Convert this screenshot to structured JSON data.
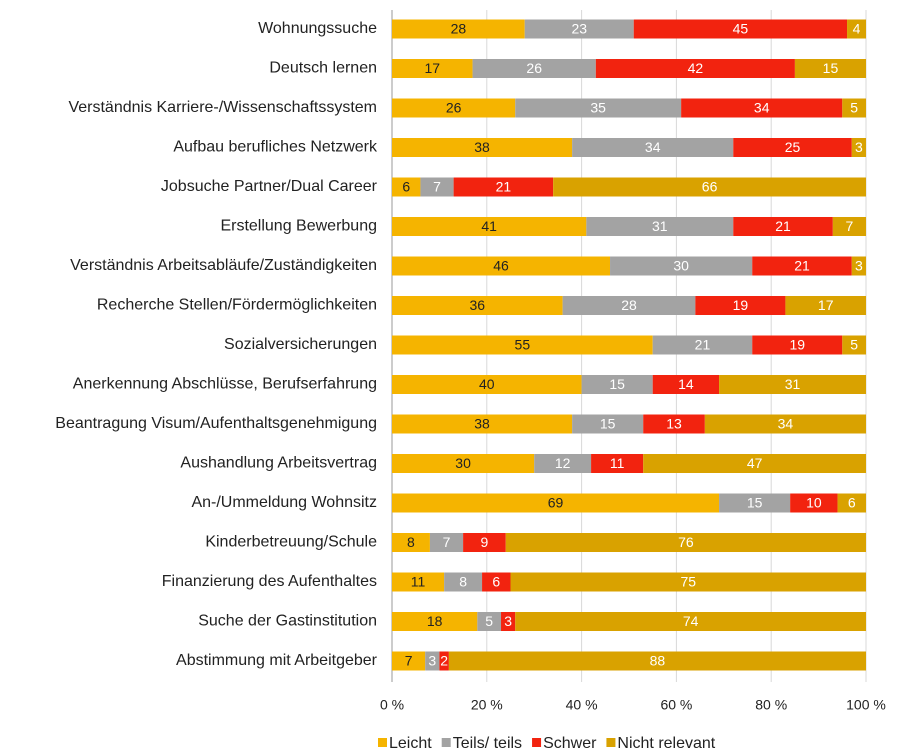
{
  "chart_data": {
    "type": "stacked-bar-horizontal",
    "categories": [
      "Wohnungssuche",
      "Deutsch lernen",
      "Verständnis Karriere-/Wissenschaftssystem",
      "Aufbau berufliches Netzwerk",
      "Jobsuche Partner/Dual Career",
      "Erstellung Bewerbung",
      "Verständnis Arbeitsabläufe/Zuständigkeiten",
      "Recherche Stellen/Fördermöglichkeiten",
      "Sozialversicherungen",
      "Anerkennung Abschlüsse, Berufserfahrung",
      "Beantragung Visum/Aufenthaltsgenehmigung",
      "Aushandlung Arbeitsvertrag",
      "An-/Ummeldung Wohnsitz",
      "Kinderbetreuung/Schule",
      "Finanzierung des Aufenthaltes",
      "Suche der Gastinstitution",
      "Abstimmung mit Arbeitgeber"
    ],
    "series": [
      {
        "name": "Leicht",
        "color": "#f5b400",
        "values": [
          28,
          17,
          26,
          38,
          6,
          41,
          46,
          36,
          55,
          40,
          38,
          30,
          69,
          8,
          11,
          18,
          7
        ]
      },
      {
        "name": "Teils/ teils",
        "color": "#a3a3a3",
        "values": [
          23,
          26,
          35,
          34,
          7,
          31,
          30,
          28,
          21,
          15,
          15,
          12,
          15,
          7,
          8,
          5,
          3
        ]
      },
      {
        "name": "Schwer",
        "color": "#f2230f",
        "values": [
          45,
          42,
          34,
          25,
          21,
          21,
          21,
          19,
          19,
          14,
          13,
          11,
          10,
          9,
          6,
          3,
          2
        ]
      },
      {
        "name": "Nicht relevant",
        "color": "#d9a200",
        "values": [
          4,
          15,
          5,
          3,
          66,
          7,
          3,
          17,
          5,
          31,
          34,
          47,
          6,
          76,
          75,
          74,
          88
        ]
      }
    ],
    "xlim": [
      0,
      100
    ],
    "xticks": [
      {
        "value": 0,
        "label": "0 %"
      },
      {
        "value": 20,
        "label": "20 %"
      },
      {
        "value": 40,
        "label": "40 %"
      },
      {
        "value": 60,
        "label": "60 %"
      },
      {
        "value": 80,
        "label": "80 %"
      },
      {
        "value": 100,
        "label": "100 %"
      }
    ],
    "grid": true,
    "legend": "bottom"
  }
}
